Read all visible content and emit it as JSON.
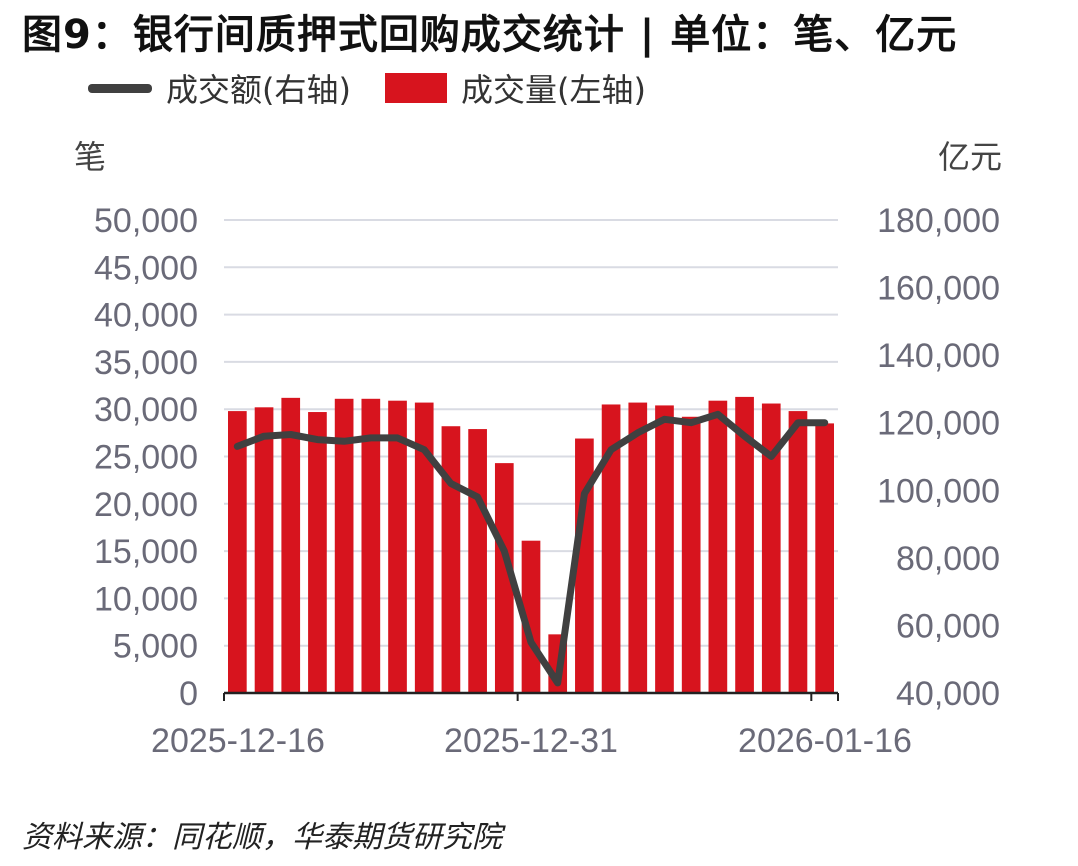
{
  "title": "图9：银行间质押式回购成交统计 | 单位：笔、亿元",
  "source": "资料来源：同花顺，华泰期货研究院",
  "colors": {
    "bar": "#d7141e",
    "line": "#404040",
    "grid": "#d9dbe3",
    "tick": "#6a6a78"
  },
  "chart_data": {
    "type": "bar",
    "left_axis_unit": "笔",
    "right_axis_unit": "亿元",
    "x_tick_labels": [
      "2025-12-16",
      "2025-12-31",
      "2026-01-16"
    ],
    "y_left_ticks": [
      "0",
      "5,000",
      "10,000",
      "15,000",
      "20,000",
      "25,000",
      "30,000",
      "35,000",
      "40,000",
      "45,000",
      "50,000"
    ],
    "y_right_ticks": [
      "40,000",
      "60,000",
      "80,000",
      "100,000",
      "120,000",
      "140,000",
      "160,000",
      "180,000"
    ],
    "ylim_left": [
      0,
      50000
    ],
    "ylim_right": [
      40000,
      180000
    ],
    "grid": true,
    "legend_position": "top-left",
    "series": [
      {
        "name": "成交量(左轴)",
        "type": "bar",
        "axis": "left",
        "values": [
          29800,
          30200,
          31200,
          29700,
          31100,
          31100,
          30900,
          30700,
          28200,
          27900,
          24300,
          16100,
          6200,
          26900,
          30500,
          30700,
          30400,
          29200,
          30900,
          31300,
          30600,
          29800,
          28500
        ]
      },
      {
        "name": "成交额(右轴)",
        "type": "line",
        "axis": "right",
        "values": [
          113000,
          116000,
          116500,
          115000,
          114500,
          115500,
          115500,
          112000,
          102000,
          98000,
          82000,
          55000,
          43000,
          99000,
          112000,
          117000,
          121000,
          120000,
          122500,
          116000,
          110000,
          120000,
          120000
        ]
      }
    ]
  }
}
